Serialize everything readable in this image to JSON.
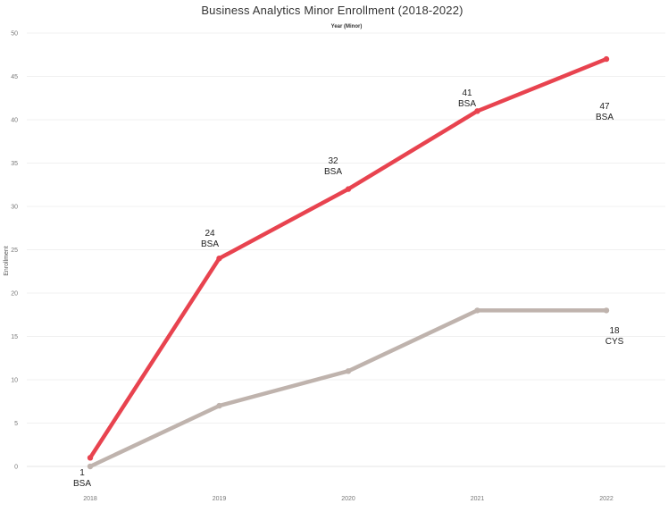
{
  "chart_data": {
    "type": "line",
    "title": "Business Analytics Minor Enrollment (2018-2022)",
    "top_axis_title": "Year (Minor)",
    "ylabel": "Enrollment",
    "categories": [
      "2018",
      "2019",
      "2020",
      "2021",
      "2022"
    ],
    "ylim": [
      0,
      50
    ],
    "yticks": [
      0,
      5,
      10,
      15,
      20,
      25,
      30,
      35,
      40,
      45,
      50
    ],
    "grid": true,
    "legend": "none",
    "series": [
      {
        "name": "BSA",
        "values": [
          1,
          24,
          32,
          41,
          47
        ],
        "color": "#e8434f"
      },
      {
        "name": "CYS",
        "values": [
          0,
          7,
          11,
          18,
          18
        ],
        "color": "#bfb3ad"
      }
    ],
    "annotations": [
      {
        "series": "BSA",
        "index": 0,
        "value": "1",
        "tag": "BSA"
      },
      {
        "series": "BSA",
        "index": 1,
        "value": "24",
        "tag": "BSA"
      },
      {
        "series": "BSA",
        "index": 2,
        "value": "32",
        "tag": "BSA"
      },
      {
        "series": "BSA",
        "index": 3,
        "value": "41",
        "tag": "BSA"
      },
      {
        "series": "BSA",
        "index": 4,
        "value": "47",
        "tag": "BSA"
      },
      {
        "series": "CYS",
        "index": 4,
        "value": "18",
        "tag": "CYS"
      }
    ]
  }
}
